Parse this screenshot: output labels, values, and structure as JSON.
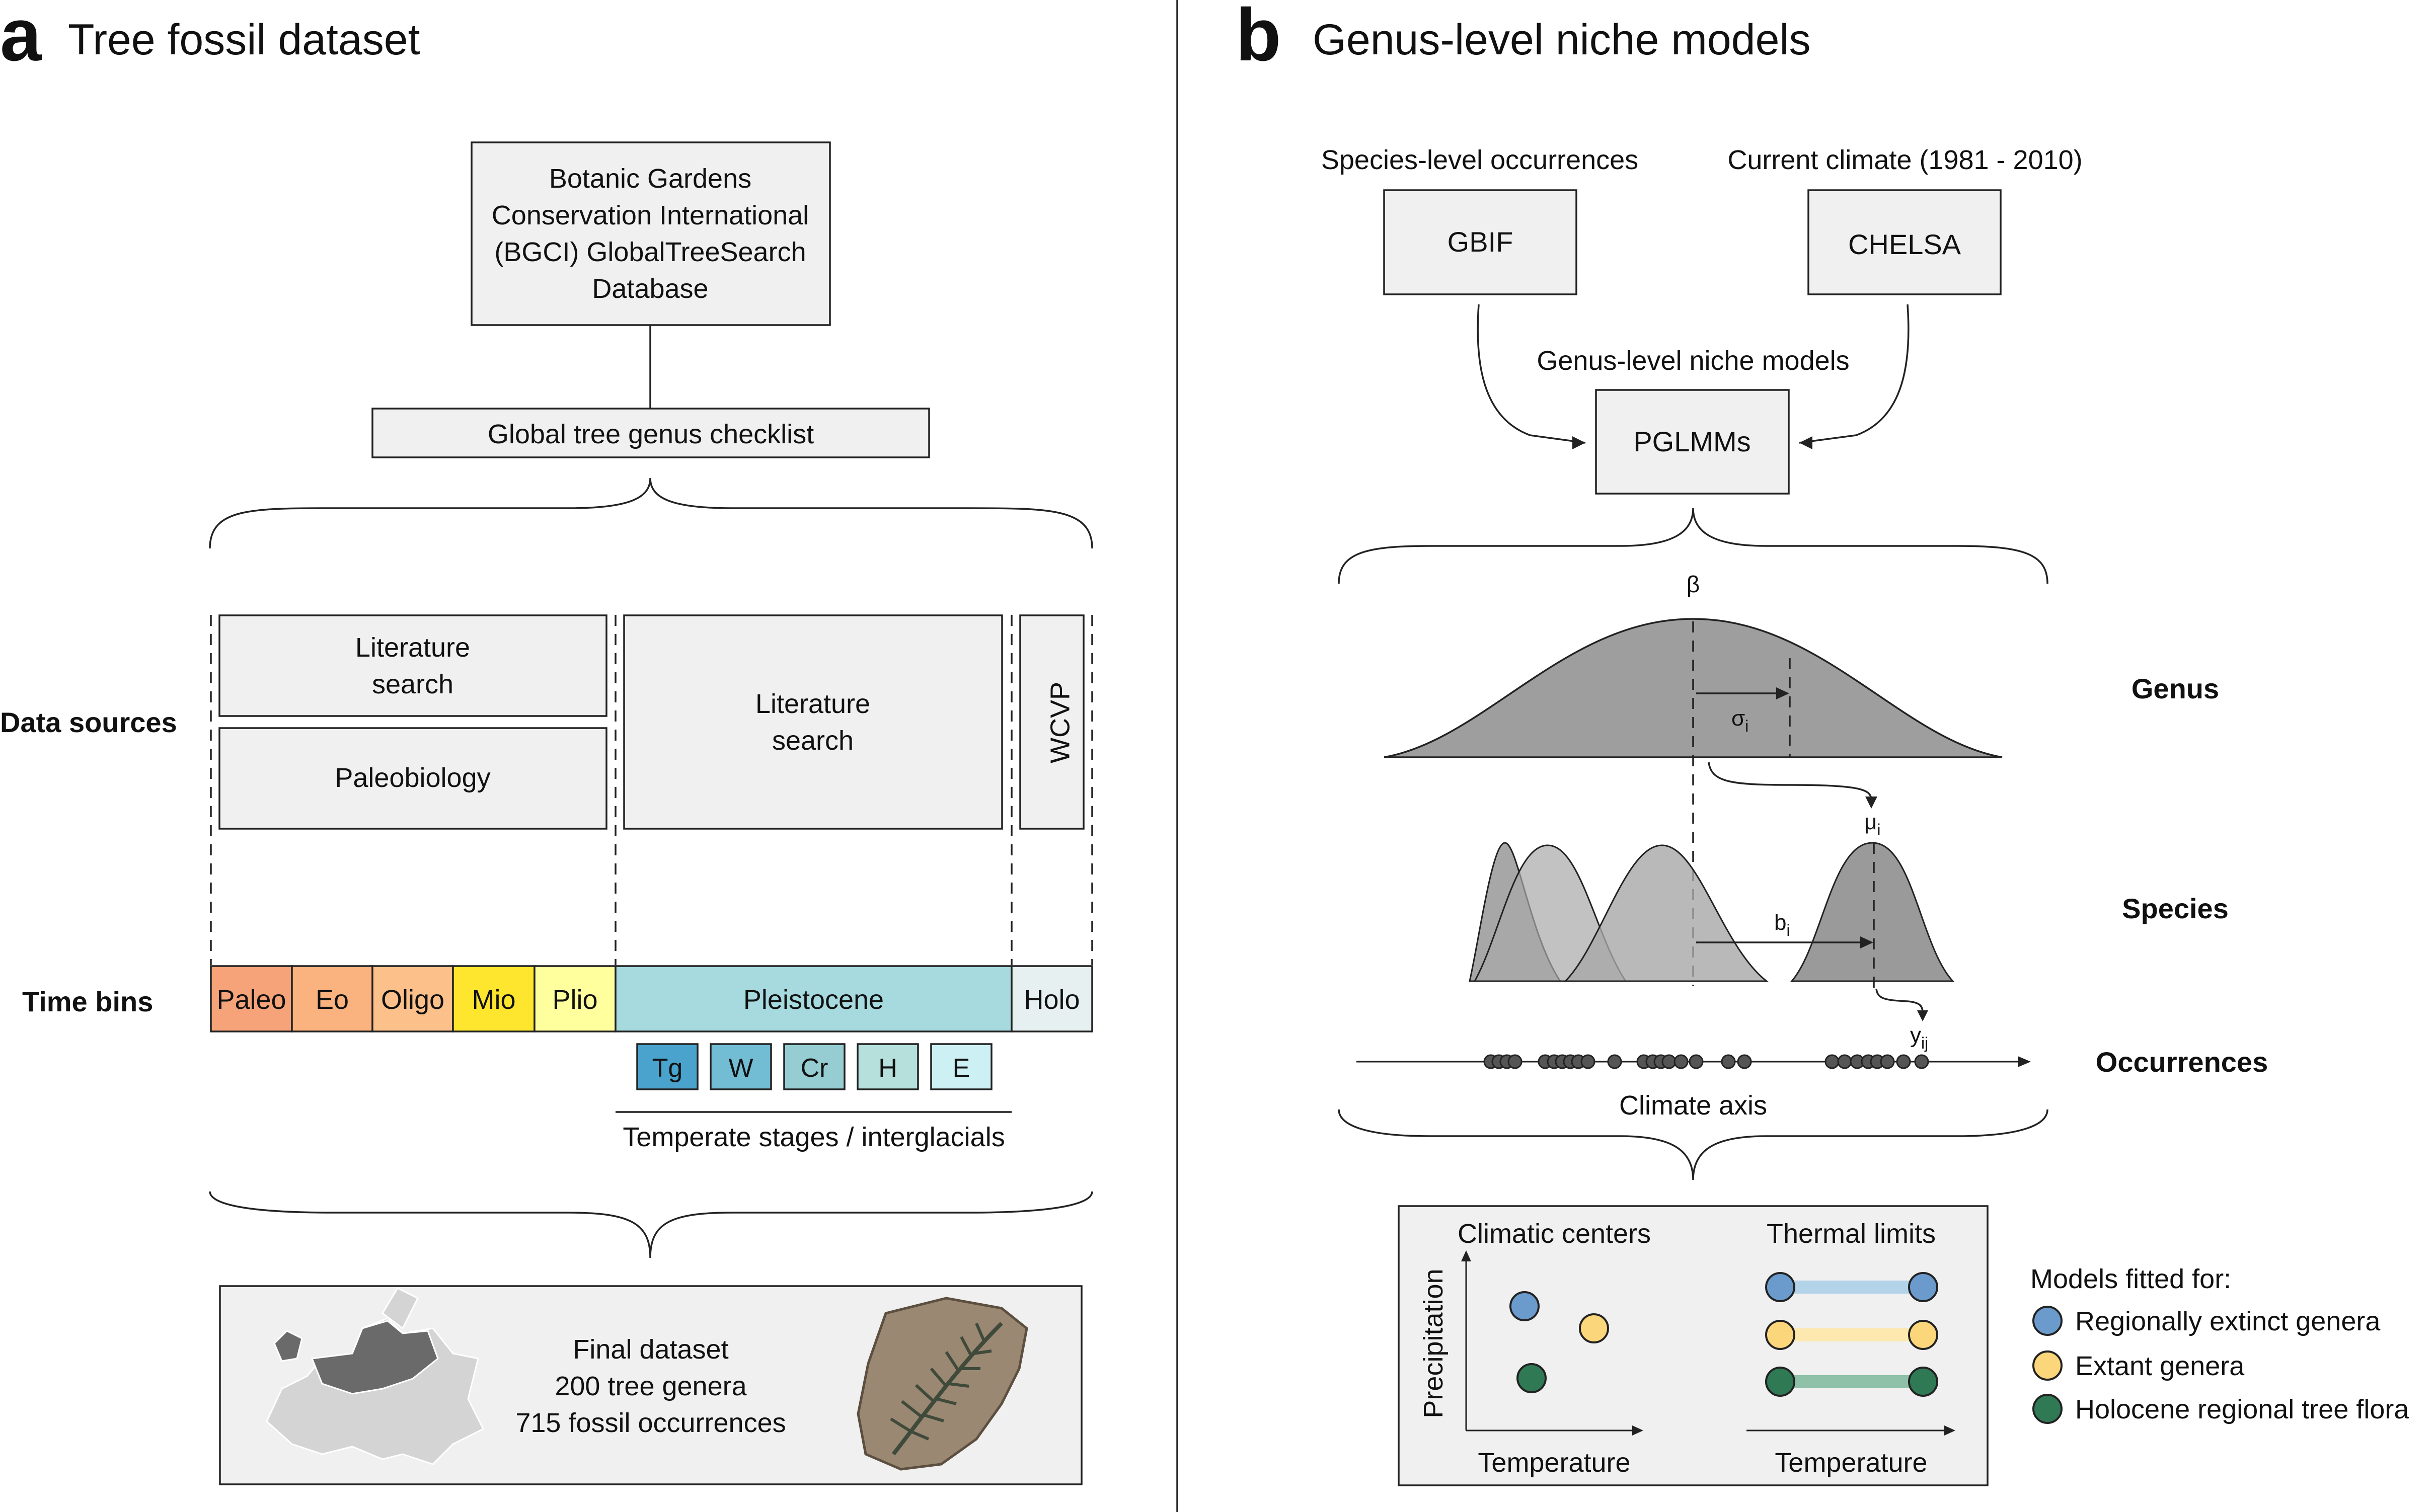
{
  "panel_a": {
    "letter": "a",
    "title": "Tree fossil dataset",
    "bgci_lines": [
      "Botanic Gardens",
      "Conservation International",
      "(BGCI) GlobalTreeSearch",
      "Database"
    ],
    "checklist": "Global tree genus checklist",
    "row_labels": {
      "data_sources": "Data sources",
      "time_bins": "Time bins"
    },
    "sources": {
      "lit1_lines": [
        "Literature",
        "search"
      ],
      "paleobiology": "Paleobiology",
      "lit2_lines": [
        "Literature",
        "search"
      ],
      "wcvp": "WCVP"
    },
    "time_bins": [
      {
        "label": "Paleo",
        "color": "#f7a37a"
      },
      {
        "label": "Eo",
        "color": "#fab27e"
      },
      {
        "label": "Oligo",
        "color": "#fcc08a"
      },
      {
        "label": "Mio",
        "color": "#ffe62e"
      },
      {
        "label": "Plio",
        "color": "#ffff9e"
      },
      {
        "label": "Pleistocene",
        "color": "#a6dadf"
      },
      {
        "label": "Holo",
        "color": "#e6f0f0"
      }
    ],
    "stages": [
      {
        "label": "Tg",
        "color": "#4aa3cc"
      },
      {
        "label": "W",
        "color": "#72bdd4"
      },
      {
        "label": "Cr",
        "color": "#95cdd2"
      },
      {
        "label": "H",
        "color": "#b5e0dc"
      },
      {
        "label": "E",
        "color": "#cdf0f5"
      }
    ],
    "stages_caption": "Temperate stages / interglacials",
    "final_lines": [
      "Final dataset",
      "200 tree genera",
      "715 fossil occurrences"
    ]
  },
  "panel_b": {
    "letter": "b",
    "title": "Genus-level niche models",
    "occ_label": "Species-level occurrences",
    "climate_label": "Current climate (1981 - 2010)",
    "gbif": "GBIF",
    "chelsa": "CHELSA",
    "niche_label": "Genus-level niche models",
    "pglmm": "PGLMMs",
    "symbols": {
      "beta": "β",
      "sigma": "σ",
      "sigma_sub": "i",
      "mu": "μ",
      "mu_sub": "i",
      "b": "b",
      "b_sub": "i",
      "y": "y",
      "y_sub": "ij"
    },
    "level_labels": {
      "genus": "Genus",
      "species": "Species",
      "occurrences": "Occurrences"
    },
    "axis_label": "Climate axis",
    "centers_title": "Climatic centers",
    "limits_title": "Thermal limits",
    "ylabel": "Precipitation",
    "xlabel_left": "Temperature",
    "xlabel_right": "Temperature",
    "legend_title": "Models fitted for:",
    "legend": [
      {
        "label": "Regionally extinct genera",
        "color": "#6b9bcd"
      },
      {
        "label": "Extant genera",
        "color": "#fbd67b"
      },
      {
        "label": "Holocene regional tree flora",
        "color": "#2f7a55"
      }
    ],
    "bar_colors": [
      "#b3d3e8",
      "#fde9b0",
      "#8fc0a8"
    ]
  }
}
